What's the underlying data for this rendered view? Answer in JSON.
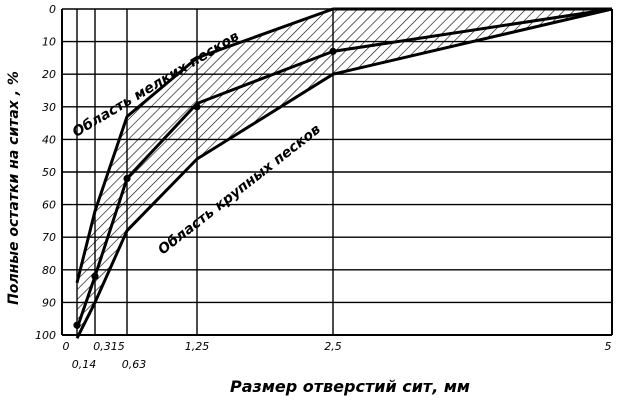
{
  "chart_data": {
    "type": "line",
    "ylabel": "Полные остатки на ситах , %",
    "xlabel": "Размер отверстий сит, мм",
    "x_ticks_upper": [
      "0",
      "0,315",
      "1,25",
      "2,5",
      "5"
    ],
    "x_ticks_lower": [
      "0,14",
      "0,63"
    ],
    "y_ticks": [
      "0",
      "10",
      "20",
      "30",
      "40",
      "50",
      "60",
      "70",
      "80",
      "90",
      "100"
    ],
    "ylim": [
      100,
      0
    ],
    "xlim": [
      0,
      5
    ],
    "grid": true,
    "x_positions_mm": [
      0,
      0.14,
      0.315,
      0.63,
      1.25,
      2.5,
      5
    ],
    "area_labels": {
      "fine": "Область мелких песков",
      "coarse": "Область крупных песков"
    },
    "series": [
      {
        "points": [
          [
            0.14,
            84
          ],
          [
            0.315,
            62
          ],
          [
            0.63,
            33
          ],
          [
            1.25,
            15
          ],
          [
            2.5,
            0
          ],
          [
            5,
            0
          ]
        ]
      },
      {
        "points": [
          [
            0.14,
            98
          ],
          [
            0.315,
            82
          ],
          [
            0.63,
            52
          ],
          [
            1.25,
            29
          ],
          [
            2.5,
            13
          ],
          [
            5,
            0
          ]
        ]
      },
      {
        "points": [
          [
            0.14,
            101
          ],
          [
            0.315,
            90
          ],
          [
            0.63,
            68
          ],
          [
            1.25,
            46
          ],
          [
            2.5,
            20
          ],
          [
            5,
            0
          ]
        ]
      }
    ],
    "markers": [
      [
        0.14,
        97
      ],
      [
        0.315,
        82
      ],
      [
        0.63,
        52
      ],
      [
        1.25,
        30
      ],
      [
        2.5,
        13
      ]
    ]
  }
}
